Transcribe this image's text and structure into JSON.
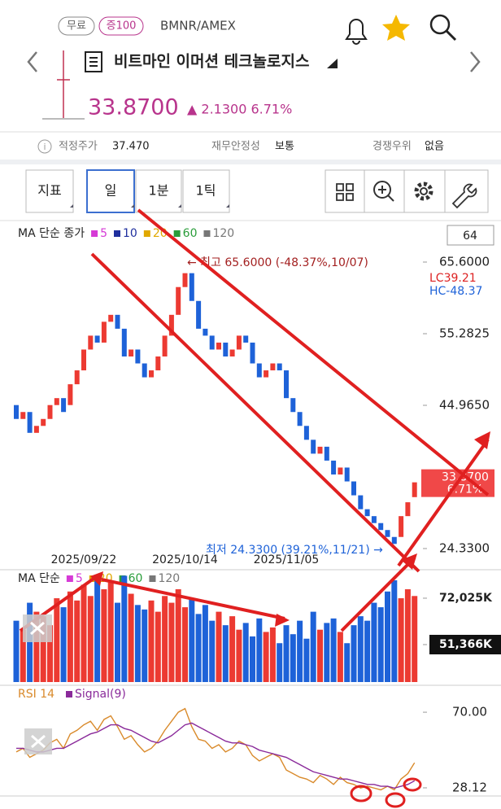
{
  "header": {
    "badges": [
      "무료",
      "증100"
    ],
    "ticker": "BMNR/AMEX",
    "name": "비트마인 이머션 테크놀로지스",
    "price": "33.8700",
    "change": "▲ 2.1300 6.71%"
  },
  "info": [
    {
      "label": "적정주가",
      "value": "37.470"
    },
    {
      "label": "재무안정성",
      "value": "보통"
    },
    {
      "label": "경쟁우위",
      "value": "없음"
    }
  ],
  "toolbar": [
    "지표",
    "일",
    "1분",
    "1틱"
  ],
  "chart_data": {
    "type": "candlestick",
    "legend_title": "MA 단순 종가",
    "legend": [
      {
        "name": "5",
        "color": "#d63ad6"
      },
      {
        "name": "10",
        "color": "#1f2f9e"
      },
      {
        "name": "20",
        "color": "#e0a800"
      },
      {
        "name": "60",
        "color": "#2a9d3a"
      },
      {
        "name": "120",
        "color": "#777777"
      }
    ],
    "count_box": "64",
    "ylim": [
      24.33,
      65.6
    ],
    "yticks": [
      {
        "value": 65.6,
        "label": "65.6000"
      },
      {
        "value": 55.2825,
        "label": "55.2825"
      },
      {
        "value": 44.965,
        "label": "44.9650"
      },
      {
        "value": 24.33,
        "label": "24.3300"
      }
    ],
    "lc": "LC39.21",
    "hc": "HC-48.37",
    "current": {
      "value": 33.87,
      "label": "33.8700",
      "pct": "6.71%"
    },
    "max_note": "← 최고 65.6000 (-48.37%,10/07)",
    "min_note": "최저 24.3300 (39.21%,11/21) →",
    "x_labels": [
      {
        "index": 10,
        "label": "2025/09/22"
      },
      {
        "index": 25,
        "label": "2025/10/14"
      },
      {
        "index": 40,
        "label": "2025/11/05"
      }
    ],
    "up_color": "#ec3a32",
    "down_color": "#1e62d8",
    "open": [
      45,
      43,
      44,
      41,
      42,
      43,
      45,
      46,
      45,
      48,
      50,
      53,
      55,
      54,
      57,
      58,
      56,
      52,
      53,
      51,
      49,
      50,
      52,
      55,
      58,
      62,
      64,
      60,
      56,
      55,
      53,
      54,
      52,
      53,
      55,
      54,
      51,
      49,
      50,
      51,
      50,
      46,
      44,
      42,
      40,
      38,
      39,
      37,
      35,
      36,
      34,
      32,
      30,
      29,
      28,
      27,
      26,
      26,
      29,
      31.74
    ],
    "close": [
      43,
      44,
      41,
      42,
      43,
      45,
      46,
      44,
      48,
      50,
      53,
      55,
      54,
      57,
      58,
      56,
      52,
      53,
      51,
      49,
      50,
      52,
      55,
      58,
      62,
      64,
      60,
      56,
      55,
      53,
      54,
      52,
      53,
      55,
      54,
      51,
      49,
      50,
      51,
      50,
      46,
      44,
      42,
      40,
      38,
      39,
      37,
      35,
      36,
      34,
      32,
      30,
      29,
      28,
      27,
      26,
      25,
      29,
      31,
      33.87
    ]
  },
  "volume_data": {
    "type": "bar",
    "legend_title": "MA 단순",
    "legend": [
      {
        "name": "5",
        "color": "#d63ad6"
      },
      {
        "name": "20",
        "color": "#e0a800"
      },
      {
        "name": "60",
        "color": "#2a9d3a"
      },
      {
        "name": "120",
        "color": "#777777"
      }
    ],
    "ylim": [
      34700,
      84700
    ],
    "yticks": [
      {
        "value": 72025,
        "label": "72,025K"
      },
      {
        "value": 51366,
        "label": "51,366K"
      }
    ],
    "values": [
      62000,
      58000,
      70000,
      66000,
      64000,
      60000,
      72000,
      68000,
      75000,
      71000,
      78000,
      73000,
      80000,
      76000,
      79000,
      70000,
      82000,
      74000,
      69000,
      67000,
      71000,
      66000,
      73000,
      70000,
      76000,
      68000,
      72000,
      65000,
      69000,
      62000,
      66000,
      60000,
      64000,
      58000,
      61000,
      55000,
      63000,
      57000,
      59000,
      52000,
      60000,
      56000,
      62000,
      54000,
      66000,
      58000,
      61000,
      63000,
      57000,
      52000,
      60000,
      64000,
      62000,
      70000,
      68000,
      75000,
      80000,
      72000,
      76000,
      73000
    ]
  },
  "rsi_data": {
    "type": "line",
    "title": "RSI 14",
    "ylim": [
      23.6,
      75.9
    ],
    "yticks": [
      {
        "value": 70,
        "label": "70.00"
      },
      {
        "value": 28.12,
        "label": "28.12"
      }
    ],
    "series": [
      {
        "name": "RSI 14",
        "color": "#d98a2b",
        "values": [
          48,
          50,
          45,
          47,
          49,
          53,
          55,
          50,
          58,
          60,
          63,
          65,
          60,
          66,
          68,
          62,
          55,
          57,
          52,
          48,
          50,
          54,
          60,
          65,
          70,
          72,
          62,
          55,
          54,
          50,
          52,
          48,
          50,
          54,
          52,
          46,
          43,
          45,
          47,
          45,
          38,
          36,
          34,
          33,
          31,
          35,
          33,
          30,
          34,
          31,
          30,
          28,
          29,
          28,
          27,
          29,
          27,
          33,
          36,
          42
        ]
      },
      {
        "name": "Signal(9)",
        "color": "#8a2a9a",
        "values": [
          50,
          50,
          49,
          48,
          48,
          49,
          50,
          50,
          52,
          54,
          56,
          58,
          59,
          61,
          63,
          63,
          61,
          60,
          58,
          56,
          54,
          53,
          55,
          57,
          60,
          63,
          64,
          62,
          60,
          58,
          56,
          54,
          53,
          53,
          52,
          51,
          49,
          48,
          47,
          46,
          45,
          43,
          41,
          39,
          37,
          36,
          35,
          34,
          33,
          33,
          32,
          31,
          30,
          30,
          29,
          29,
          28,
          29,
          30,
          32
        ]
      }
    ]
  }
}
